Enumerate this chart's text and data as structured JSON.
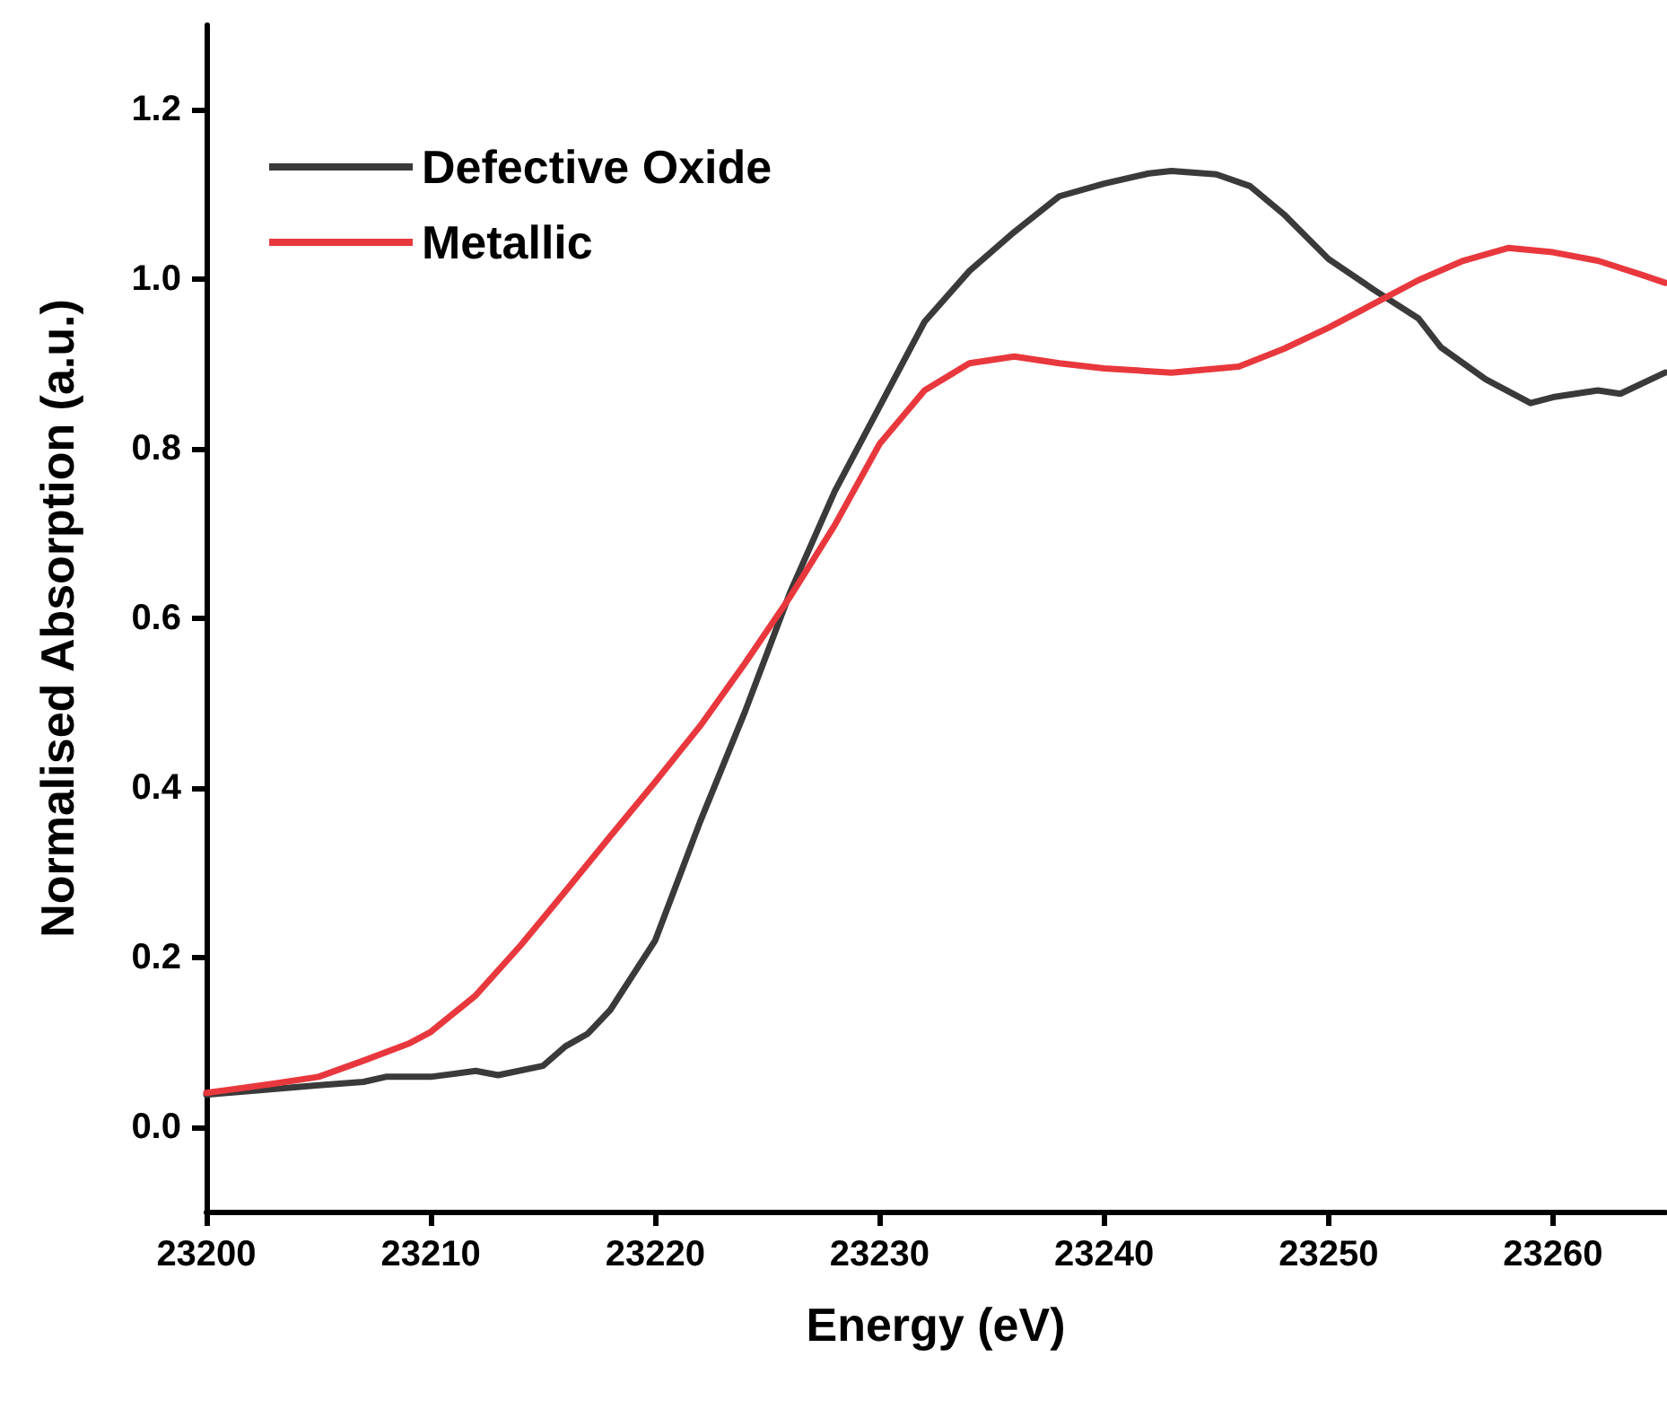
{
  "chart_data": {
    "type": "line",
    "xlabel": "Energy (eV)",
    "ylabel": "Normalised Absorption (a.u.)",
    "xlim": [
      23200,
      23265
    ],
    "xticks": [
      23200,
      23210,
      23220,
      23230,
      23240,
      23250,
      23260
    ],
    "ylim": [
      -0.1,
      1.3
    ],
    "yticks": [
      {
        "value": 0,
        "label": "0.0"
      },
      0.2,
      0.4,
      0.6,
      0.8,
      {
        "value": 1,
        "label": "1.0"
      },
      1.2
    ],
    "grid": false,
    "legend": "top left",
    "marker": "none",
    "line_style": "solid",
    "series": [
      {
        "name": "Defective Oxide",
        "color": "#3a3a3a",
        "x": [
          23200,
          23205,
          23207,
          23208,
          23210,
          23212,
          23213,
          23215,
          23216,
          23217,
          23218,
          23220,
          23222,
          23224,
          23226,
          23228,
          23230,
          23232,
          23234,
          23236,
          23238,
          23240,
          23242,
          23243,
          23245,
          23246.5,
          23248,
          23250,
          23252,
          23254,
          23255,
          23257,
          23259,
          23260,
          23262,
          23263,
          23265
        ],
        "values": [
          0.038,
          0.049,
          0.053,
          0.059,
          0.059,
          0.066,
          0.061,
          0.072,
          0.095,
          0.11,
          0.138,
          0.22,
          0.36,
          0.49,
          0.63,
          0.75,
          0.85,
          0.95,
          1.01,
          1.056,
          1.098,
          1.113,
          1.125,
          1.128,
          1.124,
          1.11,
          1.077,
          1.024,
          0.988,
          0.954,
          0.92,
          0.882,
          0.854,
          0.861,
          0.869,
          0.865,
          0.89
        ]
      },
      {
        "name": "Metallic",
        "color": "#e8383d",
        "x": [
          23200,
          23203,
          23205,
          23207,
          23209,
          23210,
          23212,
          23214,
          23216,
          23218,
          23220,
          23222,
          23224,
          23226,
          23228,
          23230,
          23232,
          23234,
          23236,
          23238,
          23240,
          23243,
          23246,
          23248,
          23250,
          23252,
          23254,
          23256,
          23258,
          23260,
          23262,
          23264,
          23265
        ],
        "values": [
          0.04,
          0.051,
          0.059,
          0.078,
          0.098,
          0.112,
          0.155,
          0.214,
          0.278,
          0.343,
          0.407,
          0.473,
          0.547,
          0.625,
          0.71,
          0.806,
          0.869,
          0.901,
          0.909,
          0.901,
          0.895,
          0.89,
          0.897,
          0.918,
          0.943,
          0.971,
          0.999,
          1.022,
          1.037,
          1.032,
          1.022,
          1.005,
          0.996
        ]
      }
    ]
  }
}
